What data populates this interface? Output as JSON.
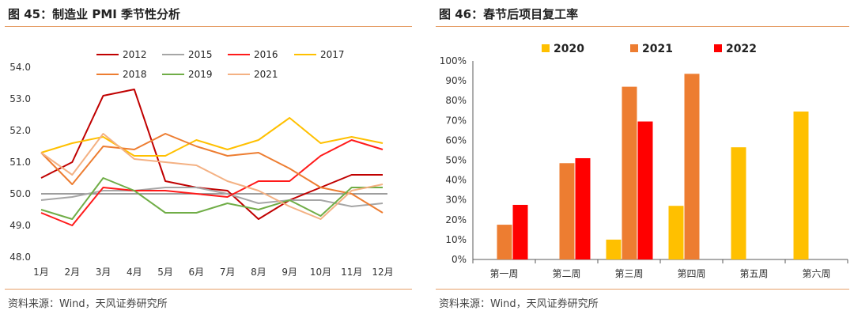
{
  "left": {
    "title": "图 45：制造业 PMI 季节性分析",
    "source": "资料来源：Wind，天风证券研究所",
    "chart_data": {
      "type": "line",
      "categories": [
        "1月",
        "2月",
        "3月",
        "4月",
        "5月",
        "6月",
        "7月",
        "8月",
        "9月",
        "10月",
        "11月",
        "12月"
      ],
      "ylim": [
        48.0,
        54.0
      ],
      "yticks": [
        "48.0",
        "49.0",
        "50.0",
        "51.0",
        "52.0",
        "53.0",
        "54.0"
      ],
      "reference_line": 50.0,
      "grid": false,
      "legend_position": "top",
      "series": [
        {
          "name": "2012",
          "color": "#c00000",
          "values": [
            50.5,
            51.0,
            53.1,
            53.3,
            50.4,
            50.2,
            50.1,
            49.2,
            49.8,
            50.2,
            50.6,
            50.6
          ]
        },
        {
          "name": "2015",
          "color": "#a6a6a6",
          "values": [
            49.8,
            49.9,
            50.1,
            50.1,
            50.2,
            50.2,
            50.0,
            49.7,
            49.8,
            49.8,
            49.6,
            49.7
          ]
        },
        {
          "name": "2016",
          "color": "#ff1a1a",
          "values": [
            49.4,
            49.0,
            50.2,
            50.1,
            50.1,
            50.0,
            49.9,
            50.4,
            50.4,
            51.2,
            51.7,
            51.4
          ]
        },
        {
          "name": "2017",
          "color": "#ffc000",
          "values": [
            51.3,
            51.6,
            51.8,
            51.2,
            51.2,
            51.7,
            51.4,
            51.7,
            52.4,
            51.6,
            51.8,
            51.6
          ]
        },
        {
          "name": "2018",
          "color": "#ed7d31",
          "values": [
            51.3,
            50.3,
            51.5,
            51.4,
            51.9,
            51.5,
            51.2,
            51.3,
            50.8,
            50.2,
            50.0,
            49.4
          ]
        },
        {
          "name": "2019",
          "color": "#70ad47",
          "values": [
            49.5,
            49.2,
            50.5,
            50.1,
            49.4,
            49.4,
            49.7,
            49.5,
            49.8,
            49.3,
            50.2,
            50.2
          ]
        },
        {
          "name": "2021",
          "color": "#f4b183",
          "values": [
            51.3,
            50.6,
            51.9,
            51.1,
            51.0,
            50.9,
            50.4,
            50.1,
            49.6,
            49.2,
            50.1,
            50.3
          ]
        }
      ]
    }
  },
  "right": {
    "title": "图 46：春节后项目复工率",
    "source": "资料来源：Wind，天风证券研究所",
    "chart_data": {
      "type": "bar",
      "categories": [
        "第一周",
        "第二周",
        "第三周",
        "第四周",
        "第五周",
        "第六周"
      ],
      "ylim": [
        0,
        100
      ],
      "yticks": [
        "0%",
        "10%",
        "20%",
        "30%",
        "40%",
        "50%",
        "60%",
        "70%",
        "80%",
        "90%",
        "100%"
      ],
      "grid": false,
      "legend_position": "top",
      "series": [
        {
          "name": "2020",
          "color": "#ffc000",
          "values": [
            null,
            null,
            10,
            27,
            56.5,
            74.5
          ]
        },
        {
          "name": "2021",
          "color": "#ed7d31",
          "values": [
            17.5,
            48.5,
            87,
            93.5,
            null,
            null
          ]
        },
        {
          "name": "2022",
          "color": "#ff0000",
          "values": [
            27.5,
            51,
            69.5,
            null,
            null,
            null
          ]
        }
      ]
    }
  }
}
